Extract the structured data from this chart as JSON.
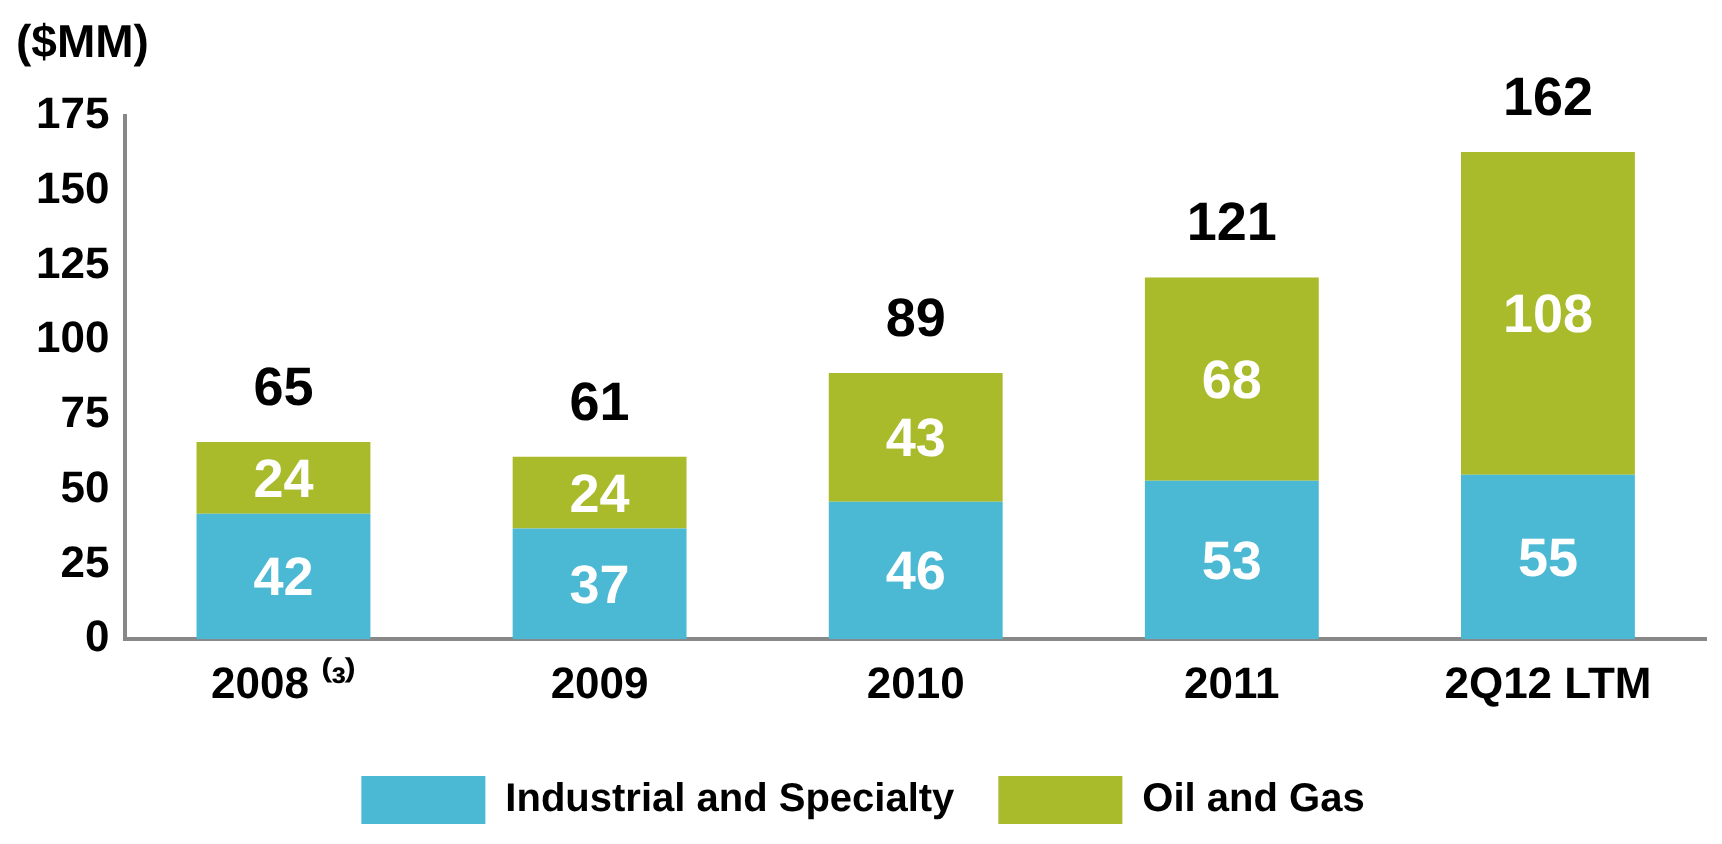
{
  "chart_data": {
    "type": "bar",
    "stacked": true,
    "ylabel": "($MM)",
    "categories": [
      "2008 ⁽³⁾",
      "2009",
      "2010",
      "2011",
      "2Q12 LTM"
    ],
    "series": [
      {
        "name": "Industrial and Specialty",
        "color": "#4bb8d4",
        "values": [
          42,
          37,
          46,
          53,
          55
        ]
      },
      {
        "name": "Oil and Gas",
        "color": "#a9ba2b",
        "values": [
          24,
          24,
          43,
          68,
          108
        ]
      }
    ],
    "totals": [
      "65",
      "61",
      "89",
      "121",
      "162"
    ],
    "data_labels": true,
    "ylim": [
      0,
      175
    ],
    "yticks": [
      0,
      25,
      50,
      75,
      100,
      125,
      150,
      175
    ],
    "grid": false,
    "legend": "bottom"
  }
}
